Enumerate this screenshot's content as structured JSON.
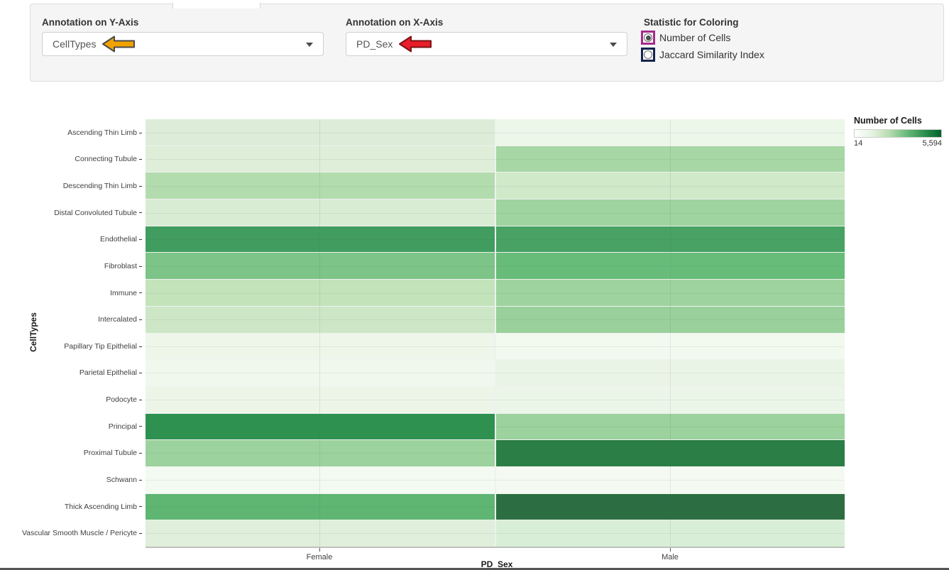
{
  "controls": {
    "y_axis": {
      "label": "Annotation on Y-Axis",
      "value": "CellTypes",
      "arrow_fill": "#f0a202",
      "arrow_outline": "#4a4a4a"
    },
    "x_axis": {
      "label": "Annotation on X-Axis",
      "value": "PD_Sex",
      "arrow_fill": "#e81e2a",
      "arrow_outline": "#7d1216"
    },
    "statistic": {
      "label": "Statistic for Coloring",
      "options": [
        {
          "label": "Number of Cells",
          "selected": true,
          "highlight_color": "#a62c8c"
        },
        {
          "label": "Jaccard Similarity Index",
          "selected": false,
          "highlight_color": "#15224f"
        }
      ]
    }
  },
  "chart_data": {
    "type": "heatmap",
    "title": "",
    "xlabel": "PD_Sex",
    "ylabel": "CellTypes",
    "x_categories": [
      "Female",
      "Male"
    ],
    "y_categories": [
      "Ascending Thin Limb",
      "Connecting Tubule",
      "Descending Thin Limb",
      "Distal Convoluted Tubule",
      "Endothelial",
      "Fibroblast",
      "Immune",
      "Intercalated",
      "Papillary Tip Epithelial",
      "Parietal Epithelial",
      "Podocyte",
      "Principal",
      "Proximal Tubule",
      "Schwann",
      "Thick Ascending Limb",
      "Vascular Smooth Muscle / Pericyte"
    ],
    "legend": {
      "title": "Number of Cells",
      "min_label": "14",
      "max_label": "5,594",
      "gradient": [
        "#ffffff",
        "#e6f3e1",
        "#b7dcb0",
        "#6aba7c",
        "#2f9152",
        "#00632a"
      ]
    },
    "cell_colors": {
      "Female": [
        "#dcecd8",
        "#deeed9",
        "#b3dcae",
        "#d8ecd4",
        "#419c60",
        "#7cc487",
        "#c3e3bb",
        "#cde7c6",
        "#eef6ea",
        "#f0f8ed",
        "#ecf5e8",
        "#2e9150",
        "#9cd29e",
        "#f3faf1",
        "#5fb572",
        "#dfefdb"
      ],
      "Male": [
        "#ecf6e9",
        "#a7d7a5",
        "#cfe9c9",
        "#9fd3a0",
        "#47a263",
        "#68bc79",
        "#9ed39f",
        "#9ad09b",
        "#f2faf0",
        "#eaf4e6",
        "#ebf5e8",
        "#9bd29d",
        "#2b7e46",
        "#f4faf2",
        "#2c6e41",
        "#d9eed6"
      ]
    }
  }
}
